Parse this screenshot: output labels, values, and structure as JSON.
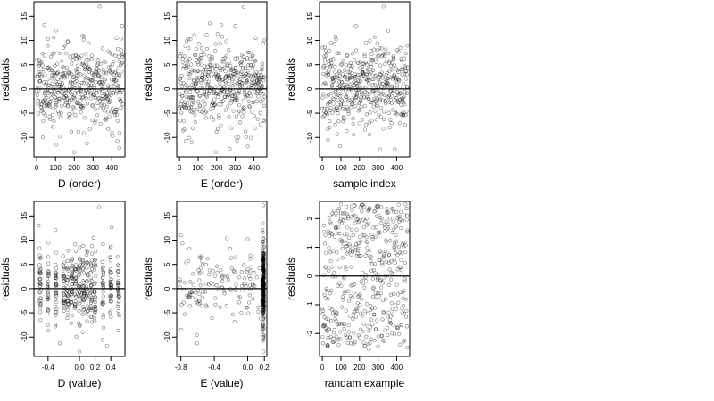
{
  "chart_data": [
    {
      "type": "scatter",
      "xlabel": "D (order)",
      "ylabel": "residuals",
      "xlim": [
        -15,
        470
      ],
      "ylim": [
        -14,
        18
      ],
      "xticks": [
        0,
        100,
        200,
        300,
        400
      ],
      "yticks": [
        -10,
        -5,
        0,
        5,
        10,
        15
      ],
      "hline": 0,
      "x_kind": "order",
      "y_kind": "resid",
      "seed": 11,
      "highlights": [
        [
          335,
          17
        ],
        [
          40,
          13.2
        ],
        [
          455,
          13
        ],
        [
          425,
          10.5
        ],
        [
          250,
          10.8
        ],
        [
          200,
          -13
        ],
        [
          440,
          -12.2
        ],
        [
          105,
          -11.5
        ]
      ]
    },
    {
      "type": "scatter",
      "xlabel": "E (order)",
      "ylabel": "residuals",
      "xlim": [
        -15,
        470
      ],
      "ylim": [
        -14,
        18
      ],
      "xticks": [
        0,
        100,
        200,
        300,
        400
      ],
      "yticks": [
        -10,
        -5,
        0,
        5,
        10,
        15
      ],
      "hline": 0,
      "x_kind": "order",
      "y_kind": "resid",
      "seed": 23,
      "highlights": [
        [
          345,
          16.9
        ],
        [
          225,
          13.2
        ],
        [
          300,
          13
        ],
        [
          410,
          10.5
        ],
        [
          195,
          -13
        ],
        [
          65,
          -11
        ],
        [
          270,
          -12.4
        ]
      ]
    },
    {
      "type": "scatter",
      "xlabel": "sample index",
      "ylabel": "residuals",
      "xlim": [
        -15,
        470
      ],
      "ylim": [
        -14,
        18
      ],
      "xticks": [
        0,
        100,
        200,
        300,
        400
      ],
      "yticks": [
        -10,
        -5,
        0,
        5,
        10,
        15
      ],
      "hline": 0,
      "x_kind": "order",
      "y_kind": "resid",
      "seed": 37,
      "highlights": [
        [
          330,
          17
        ],
        [
          180,
          13
        ],
        [
          355,
          12
        ],
        [
          95,
          -11.8
        ],
        [
          310,
          -12.5
        ],
        [
          30,
          -10.5
        ]
      ]
    },
    {
      "type": "scatter",
      "xlabel": "D (value)",
      "ylabel": "residuals",
      "xlim": [
        -0.58,
        0.58
      ],
      "ylim": [
        -14,
        18
      ],
      "xticks": [
        -0.4,
        0.0,
        0.2,
        0.4
      ],
      "ytick_labels_override": null,
      "yticks": [
        -10,
        -5,
        0,
        5,
        10,
        15
      ],
      "hline": 0,
      "x_kind": "dvalue",
      "y_kind": "resid",
      "seed": 53,
      "highlights": [
        [
          0.25,
          16.8
        ],
        [
          -0.52,
          13
        ],
        [
          0.41,
          12.6
        ],
        [
          0.18,
          10.5
        ],
        [
          0.0,
          -13
        ],
        [
          -0.25,
          -11.3
        ],
        [
          0.35,
          -11.8
        ]
      ]
    },
    {
      "type": "scatter",
      "xlabel": "E (value)",
      "ylabel": "residuals",
      "xlim": [
        -0.85,
        0.23
      ],
      "ylim": [
        -14,
        18
      ],
      "xticks": [
        -0.8,
        -0.4,
        0.0,
        0.2
      ],
      "yticks": [
        -10,
        -5,
        0,
        5,
        10,
        15
      ],
      "hline": 0,
      "x_kind": "evalue",
      "y_kind": "resid",
      "seed": 71,
      "highlights": [
        [
          0.19,
          17.2
        ],
        [
          0.18,
          13.5
        ],
        [
          0.19,
          -13
        ],
        [
          -0.8,
          11
        ],
        [
          0.0,
          10.2
        ],
        [
          -0.8,
          -8.5
        ]
      ]
    },
    {
      "type": "scatter",
      "xlabel": "randam example",
      "ylabel": "residuals",
      "xlim": [
        -15,
        470
      ],
      "ylim": [
        -2.8,
        2.6
      ],
      "xticks": [
        0,
        100,
        200,
        300,
        400
      ],
      "yticks": [
        -2,
        -1,
        0,
        1,
        2
      ],
      "hline": 0,
      "x_kind": "order",
      "y_kind": "uniform",
      "seed": 97,
      "highlights": [
        [
          300,
          2.45
        ],
        [
          205,
          2.4
        ],
        [
          250,
          -2.55
        ],
        [
          30,
          -2.4
        ],
        [
          120,
          2.2
        ]
      ]
    }
  ]
}
